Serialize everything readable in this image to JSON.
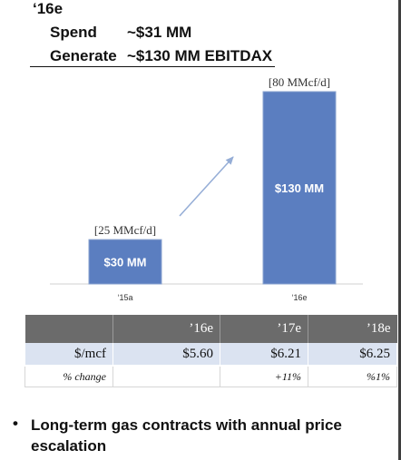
{
  "header": {
    "year": "‘16e",
    "rows": [
      {
        "label": "Spend",
        "value": "~$31 MM"
      },
      {
        "label": "Generate",
        "value": "~$130 MM EBITDAX"
      }
    ]
  },
  "colors": {
    "bar": "#5b7ec0",
    "arrow": "#95add6",
    "header_cell": "#6b6b6b",
    "row_fill": "#dbe3f1"
  },
  "chart_data": {
    "type": "bar",
    "categories": [
      "‘15a",
      "‘16e"
    ],
    "values": [
      30,
      130
    ],
    "value_labels": [
      "$30 MM",
      "$130 MM"
    ],
    "callouts": [
      "[25 MMcf/d]",
      "[80 MMcf/d]"
    ],
    "ylim": [
      0,
      130
    ]
  },
  "price_table": {
    "headers": [
      "",
      "’16e",
      "’17e",
      "’18e"
    ],
    "rows": [
      {
        "label": "$/mcf",
        "values": [
          "$5.60",
          "$6.21",
          "$6.25"
        ]
      },
      {
        "label": "% change",
        "values": [
          "",
          "+11%",
          "%1%"
        ]
      }
    ]
  },
  "bullet": "Long-term gas contracts with annual price escalation"
}
